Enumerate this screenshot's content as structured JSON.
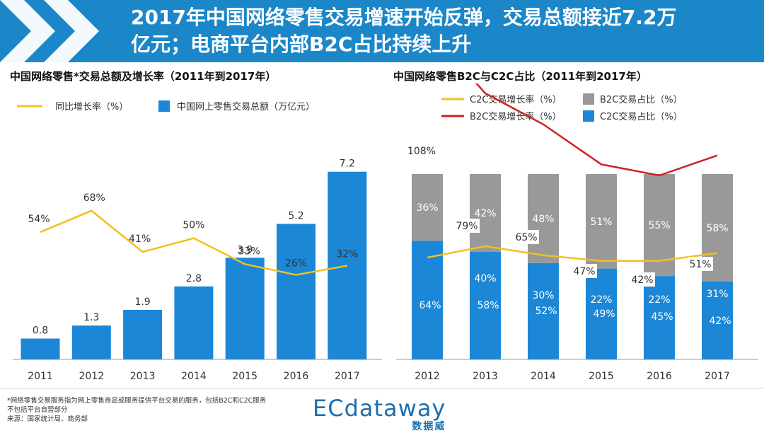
{
  "header": {
    "title_line1": "2017年中国网络零售交易增速开始反弹，交易总额接近7.2万",
    "title_line2": "亿元；电商平台内部B2C占比持续上升",
    "background_color": "#1b87c9"
  },
  "footnote": {
    "line1": "*网络零售交易服务指为网上零售商品或服务提供平台交易的服务，包括B2C和C2C服务",
    "line2": "不包括平台自营部分",
    "line3": "来源：国家统计局、商务部"
  },
  "logo": {
    "name": "ECdataway",
    "cn": "数据威"
  },
  "chart_data": [
    {
      "type": "bar",
      "title": "中国网络零售*交易总额及增长率（2011年到2017年）",
      "categories": [
        "2011",
        "2012",
        "2013",
        "2014",
        "2015",
        "2016",
        "2017"
      ],
      "series": [
        {
          "name": "中国网上零售交易总额（万亿元）",
          "type": "bar",
          "color": "#1b87d6",
          "values": [
            0.8,
            1.3,
            1.9,
            2.8,
            3.9,
            5.2,
            7.2
          ],
          "labels": [
            "0.8",
            "1.3",
            "1.9",
            "2.8",
            "3.9",
            "5.2",
            "7.2"
          ]
        },
        {
          "name": "同比增长率（%）",
          "type": "line",
          "color": "#f2c01e",
          "values": [
            54,
            68,
            41,
            50,
            33,
            26,
            32
          ],
          "labels": [
            "54%",
            "68%",
            "41%",
            "50%",
            "33%",
            "26%",
            "32%"
          ]
        }
      ],
      "bar_ylim": [
        0,
        7.6
      ],
      "line_ylim": [
        10,
        105
      ],
      "legend": [
        "同比增长率（%）",
        "中国网上零售交易总额（万亿元）"
      ]
    },
    {
      "type": "bar",
      "stacked": true,
      "title": "中国网络零售B2C与C2C占比（2011年到2017年）",
      "categories": [
        "2012",
        "2013",
        "2014",
        "2015",
        "2016",
        "2017"
      ],
      "series": [
        {
          "name": "C2C交易占比（%）",
          "type": "bar",
          "color": "#1b87d6",
          "values": [
            64,
            58,
            52,
            49,
            45,
            42
          ],
          "labels": [
            "64%",
            "58%",
            "52%",
            "49%",
            "45%",
            "42%"
          ]
        },
        {
          "name": "B2C交易占比（%）",
          "type": "bar",
          "color": "#999999",
          "values": [
            36,
            42,
            48,
            51,
            55,
            58
          ],
          "labels": [
            "36%",
            "42%",
            "48%",
            "51%",
            "55%",
            "58%"
          ]
        },
        {
          "name": "B2C交易增长率（%）",
          "type": "line",
          "color": "#cc2222",
          "values": [
            108,
            79,
            65,
            47,
            42,
            51
          ],
          "labels": [
            "108%",
            "79%",
            "65%",
            "47%",
            "42%",
            "51%"
          ]
        },
        {
          "name": "C2C交易增长率（%）",
          "type": "line",
          "color": "#f2c01e",
          "values": [
            15,
            25,
            17,
            12,
            12,
            19
          ],
          "labels": [
            "",
            "",
            "",
            "",
            "",
            ""
          ]
        }
      ],
      "percent_ylim": [
        0,
        100
      ],
      "bar_value_labels": [
        "40%",
        "30%",
        "22%",
        "22%",
        "31%"
      ],
      "legend": [
        "C2C交易增长率（%）",
        "B2C交易占比（%）",
        "B2C交易增长率（%）",
        "C2C交易占比（%）"
      ]
    }
  ]
}
